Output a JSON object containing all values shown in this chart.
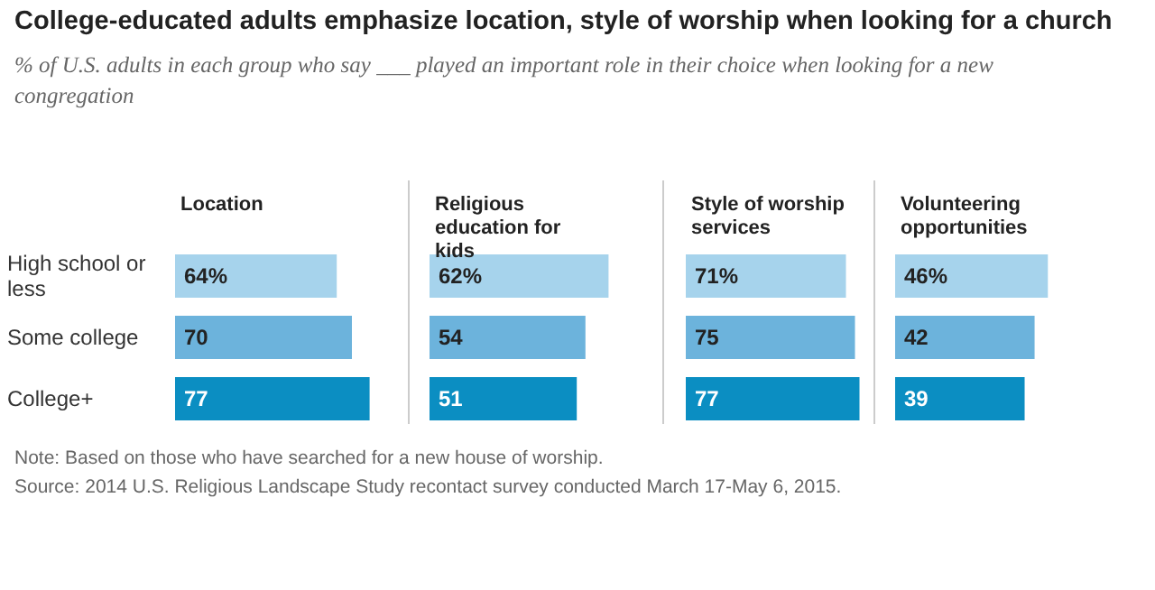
{
  "chart_data": [
    {
      "type": "other",
      "title": "College-educated adults emphasize location, style of worship when looking for a church",
      "subtitle": "% of U.S. adults in each group who say ___ played an important role in their choice when looking for a new congregation",
      "annotations": [
        "Note: Based on those who have searched for a new house of worship.",
        "Source: 2014 U.S. Religious Landscape Study recontact survey conducted March 17-May 6, 2015."
      ]
    },
    {
      "type": "bar",
      "orientation": "horizontal",
      "title": "Location",
      "categories": [
        "High school or less",
        "Some college",
        "College+"
      ],
      "values": [
        64,
        70,
        77
      ],
      "value_labels": [
        "64%",
        "70",
        "77"
      ],
      "colors": [
        "#a6d3ec",
        "#6cb3dc",
        "#0b8ec2"
      ],
      "tick_labels": "y"
    },
    {
      "type": "bar",
      "orientation": "horizontal",
      "title": "Religious education for kids",
      "categories": [
        "High school or less",
        "Some college",
        "College+"
      ],
      "values": [
        62,
        54,
        51
      ],
      "value_labels": [
        "62%",
        "54",
        "51"
      ],
      "colors": [
        "#a6d3ec",
        "#6cb3dc",
        "#0b8ec2"
      ],
      "tick_labels": false
    },
    {
      "type": "bar",
      "orientation": "horizontal",
      "title": "Style of worship services",
      "categories": [
        "High school or less",
        "Some college",
        "College+"
      ],
      "values": [
        71,
        75,
        77
      ],
      "value_labels": [
        "71%",
        "75",
        "77"
      ],
      "colors": [
        "#a6d3ec",
        "#6cb3dc",
        "#0b8ec2"
      ],
      "tick_labels": false
    },
    {
      "type": "bar",
      "orientation": "horizontal",
      "title": "Volunteering opportunities",
      "categories": [
        "High school or less",
        "Some college",
        "College+"
      ],
      "values": [
        46,
        42,
        39
      ],
      "value_labels": [
        "46%",
        "42",
        "39"
      ],
      "colors": [
        "#a6d3ec",
        "#6cb3dc",
        "#0b8ec2"
      ],
      "tick_labels": false
    }
  ]
}
